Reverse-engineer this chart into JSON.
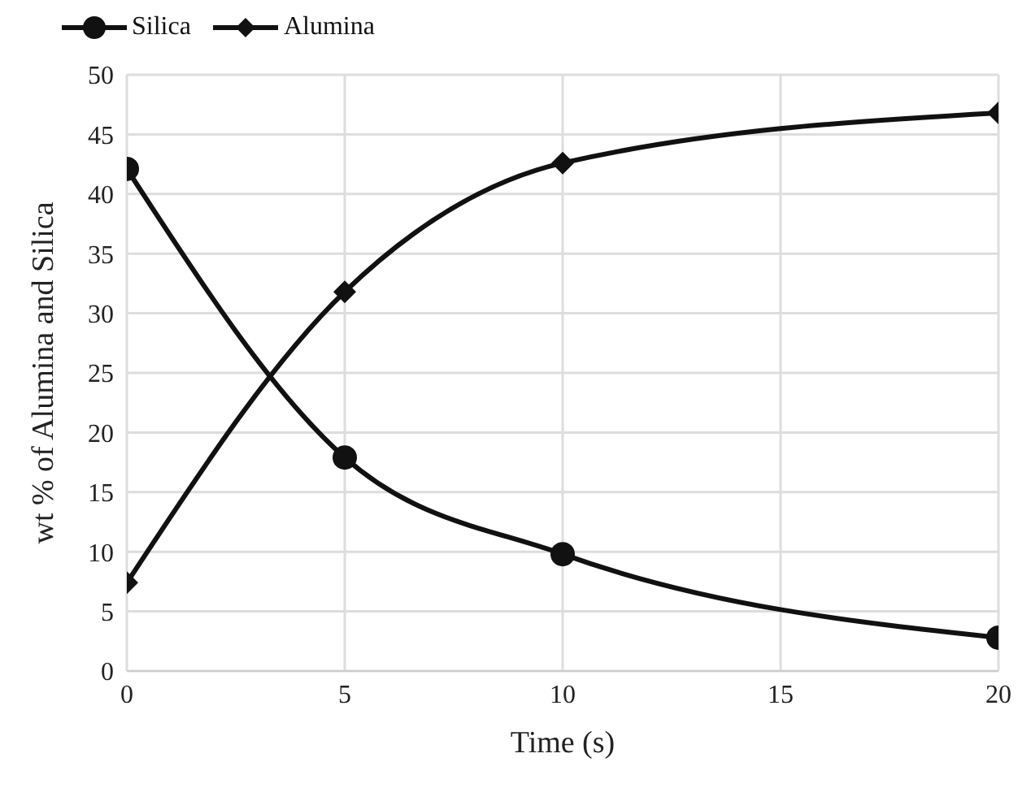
{
  "chart_data": {
    "type": "line",
    "xlabel": "Time (s)",
    "ylabel": "wt % of Alumina and Silica",
    "x": [
      0,
      5,
      10,
      20
    ],
    "series": [
      {
        "name": "Silica",
        "color": "#111111",
        "marker": "circle",
        "values": [
          42.1,
          17.9,
          9.8,
          2.8
        ]
      },
      {
        "name": "Alumina",
        "color": "#111111",
        "marker": "diamond",
        "values": [
          7.4,
          31.8,
          42.6,
          46.8
        ]
      }
    ],
    "xlim": [
      0,
      20
    ],
    "xticks": [
      0,
      5,
      10,
      15,
      20
    ],
    "ylim": [
      0,
      50
    ],
    "yticks": [
      0,
      5,
      10,
      15,
      20,
      25,
      30,
      35,
      40,
      45,
      50
    ],
    "grid": true,
    "legend": "top left",
    "line_style": "solid"
  }
}
